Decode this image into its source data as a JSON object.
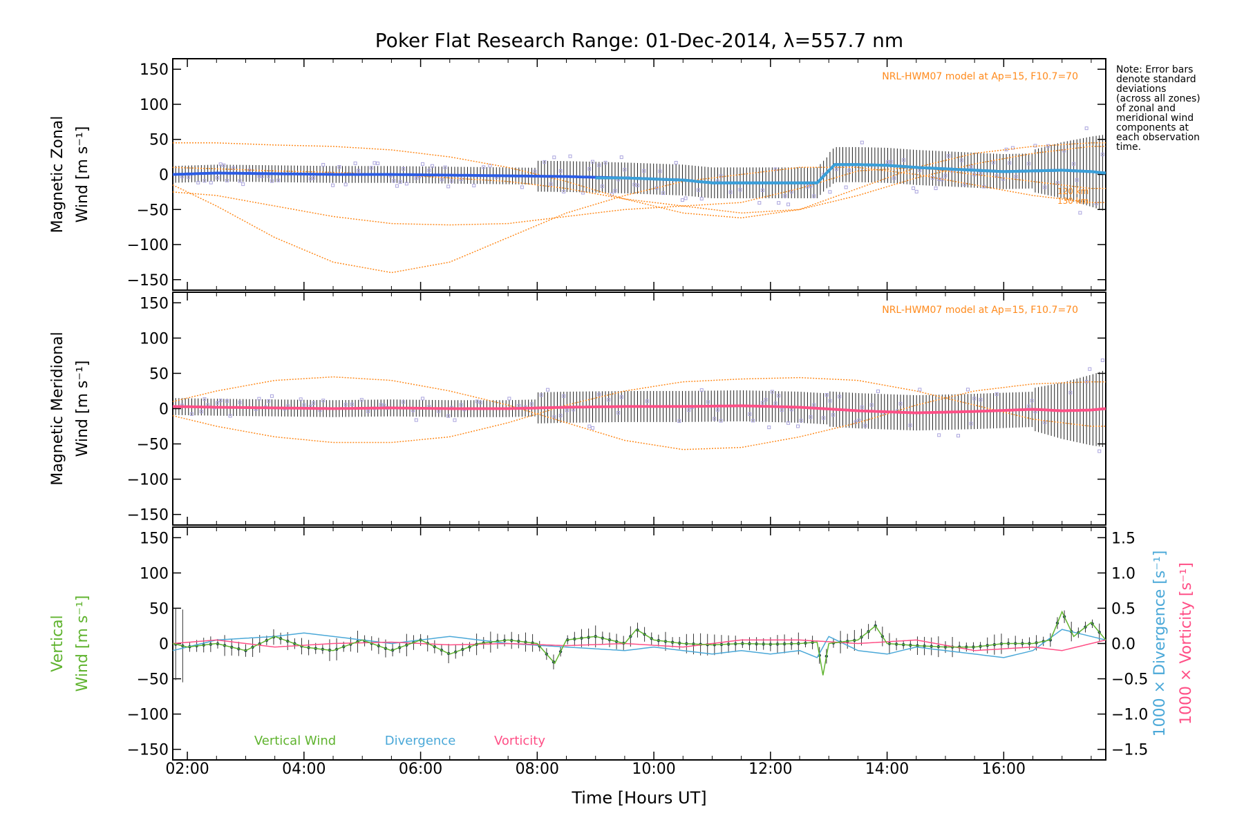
{
  "title": "Poker Flat Research Range: 01-Dec-2014, λ=557.7 nm",
  "note_lines": [
    "Note: Error bars",
    "denote standard",
    "deviations",
    "(across all zones)",
    "of zonal and",
    "meridional wind",
    "components at",
    "each observation",
    "time."
  ],
  "model_label": "NRL-HWM07 model at Ap=15, F10.7=70",
  "model_altitude_labels": [
    "120 km",
    "130 km"
  ],
  "xaxis": {
    "label": "Time [Hours UT]",
    "range": [
      1.75,
      17.75
    ],
    "ticks": [
      2,
      4,
      6,
      8,
      10,
      12,
      14,
      16
    ],
    "tick_labels": [
      "02:00",
      "04:00",
      "06:00",
      "08:00",
      "10:00",
      "12:00",
      "14:00",
      "16:00"
    ]
  },
  "colors": {
    "zonal_mean": "#2a5ce6",
    "zonal_mean_late": "#3aa0d8",
    "meridional_mean": "#ff4f86",
    "samples": "#a9a3dd",
    "model": "#ff8a1c",
    "error_bars": "#1a1a1a",
    "vertical": "#5fb32e",
    "divergence": "#4aa8d8",
    "vorticity": "#ff4f86"
  },
  "chart_data": [
    {
      "type": "line",
      "title": "",
      "ylabel_line1": "Magnetic Zonal",
      "ylabel_line2": "Wind [m s⁻¹]",
      "ylim": [
        -165,
        165
      ],
      "yticks": [
        -150,
        -100,
        -50,
        0,
        50,
        100,
        150
      ],
      "series": [
        {
          "role": "mean",
          "x": [
            1.75,
            2.5,
            3.5,
            4.5,
            5.5,
            6.5,
            7.5,
            8.5,
            9.5,
            10.5,
            11.0,
            12.0,
            12.8,
            13.1,
            13.5,
            14.0,
            14.5,
            15.0,
            15.5,
            16.0,
            16.5,
            17.0,
            17.5,
            17.75
          ],
          "y": [
            0,
            2,
            1,
            0,
            0,
            -1,
            -2,
            -3,
            -5,
            -8,
            -12,
            -12,
            -12,
            14,
            14,
            13,
            10,
            8,
            6,
            4,
            5,
            6,
            4,
            2
          ]
        },
        {
          "role": "model",
          "x": [
            1.75,
            2.5,
            3.5,
            4.5,
            5.5,
            6.5,
            7.5,
            8.5,
            9.5,
            10.5,
            11.5,
            12.5,
            13.5,
            14.5,
            15.5,
            16.5,
            17.5
          ],
          "y": [
            -15,
            -45,
            -90,
            -125,
            -140,
            -125,
            -90,
            -55,
            -30,
            -10,
            0,
            10,
            10,
            0,
            -15,
            -30,
            -40
          ]
        },
        {
          "role": "model",
          "x": [
            1.75,
            2.5,
            3.5,
            4.5,
            5.5,
            6.5,
            7.5,
            8.5,
            9.5,
            10.5,
            11.5,
            12.5,
            13.5,
            14.5,
            15.5,
            16.5,
            17.5
          ],
          "y": [
            -25,
            -30,
            -45,
            -60,
            -70,
            -72,
            -70,
            -60,
            -50,
            -45,
            -55,
            -50,
            -20,
            10,
            30,
            40,
            45
          ]
        },
        {
          "role": "model",
          "x": [
            1.75,
            2.5,
            3.5,
            4.5,
            5.5,
            6.5,
            7.5,
            8.5,
            9.5,
            10.5,
            11.5,
            12.5,
            13.5,
            14.5,
            15.5,
            16.5,
            17.5
          ],
          "y": [
            45,
            45,
            42,
            40,
            35,
            25,
            10,
            -10,
            -35,
            -55,
            -62,
            -50,
            -30,
            -5,
            15,
            30,
            40
          ]
        },
        {
          "role": "model",
          "x": [
            1.75,
            2.5,
            3.5,
            4.5,
            5.5,
            6.5,
            7.5,
            8.5,
            9.5,
            10.5,
            11.5,
            12.5,
            13.5,
            14.5,
            15.5,
            16.5,
            17.5
          ],
          "y": [
            10,
            8,
            5,
            3,
            0,
            -5,
            -10,
            -20,
            -35,
            -45,
            -40,
            -20,
            5,
            10,
            0,
            -10,
            -20
          ]
        }
      ]
    },
    {
      "type": "line",
      "title": "",
      "ylabel_line1": "Magnetic Meridional",
      "ylabel_line2": "Wind [m s⁻¹]",
      "ylim": [
        -165,
        165
      ],
      "yticks": [
        -150,
        -100,
        -50,
        0,
        50,
        100,
        150
      ],
      "series": [
        {
          "role": "mean",
          "x": [
            1.75,
            2.5,
            3.5,
            4.5,
            5.5,
            6.5,
            7.5,
            8.5,
            9.5,
            10.5,
            11.5,
            12.5,
            13.5,
            14.5,
            15.5,
            16.5,
            17.0,
            17.5,
            17.75
          ],
          "y": [
            3,
            2,
            1,
            0,
            1,
            0,
            0,
            2,
            3,
            3,
            4,
            2,
            -3,
            -6,
            -4,
            -1,
            -3,
            -2,
            0
          ]
        },
        {
          "role": "model",
          "x": [
            1.75,
            2.5,
            3.5,
            4.5,
            5.5,
            6.5,
            7.5,
            8.5,
            9.5,
            10.5,
            11.5,
            12.5,
            13.5,
            14.5,
            15.5,
            16.5,
            17.5
          ],
          "y": [
            10,
            25,
            40,
            45,
            40,
            25,
            5,
            -20,
            -45,
            -58,
            -55,
            -40,
            -20,
            5,
            25,
            35,
            38
          ]
        },
        {
          "role": "model",
          "x": [
            1.75,
            2.5,
            3.5,
            4.5,
            5.5,
            6.5,
            7.5,
            8.5,
            9.5,
            10.5,
            11.5,
            12.5,
            13.5,
            14.5,
            15.5,
            16.5,
            17.5
          ],
          "y": [
            -10,
            -25,
            -40,
            -48,
            -48,
            -40,
            -20,
            5,
            25,
            38,
            42,
            44,
            40,
            25,
            5,
            -15,
            -25
          ]
        }
      ]
    },
    {
      "type": "line",
      "title": "",
      "ylabel_line1": "Vertical",
      "ylabel_line2": "Wind [m s⁻¹]",
      "ylim": [
        -165,
        165
      ],
      "yticks": [
        -150,
        -100,
        -50,
        0,
        50,
        100,
        150
      ],
      "y2label_divergence": "1000 × Divergence [s⁻¹]",
      "y2label_vorticity": "1000 × Vorticity [s⁻¹]",
      "y2lim": [
        -1.65,
        1.65
      ],
      "y2ticks": [
        -1.5,
        -1.0,
        -0.5,
        0.0,
        0.5,
        1.0,
        1.5
      ],
      "y2tick_labels": [
        "−1.5",
        "−1.0",
        "−0.5",
        "0.0",
        "0.5",
        "1.0",
        "1.5"
      ],
      "legend": [
        "Vertical Wind",
        "Divergence",
        "Vorticity"
      ],
      "series": [
        {
          "name": "Vertical Wind",
          "x": [
            1.75,
            2.0,
            2.5,
            3.0,
            3.5,
            4.0,
            4.5,
            5.0,
            5.5,
            6.0,
            6.5,
            7.0,
            7.5,
            8.0,
            8.3,
            8.5,
            9.0,
            9.5,
            9.7,
            10.0,
            10.5,
            11.0,
            11.5,
            12.0,
            12.5,
            12.8,
            12.9,
            13.0,
            13.5,
            13.8,
            14.0,
            14.5,
            15.0,
            15.5,
            16.0,
            16.5,
            16.8,
            17.0,
            17.2,
            17.5,
            17.75
          ],
          "y": [
            0,
            -5,
            0,
            -10,
            10,
            -5,
            -10,
            5,
            -10,
            5,
            -15,
            0,
            5,
            0,
            -28,
            5,
            10,
            0,
            20,
            5,
            0,
            -2,
            0,
            -1,
            0,
            2,
            -45,
            0,
            5,
            25,
            0,
            -3,
            -5,
            -5,
            0,
            0,
            5,
            45,
            10,
            30,
            5
          ]
        },
        {
          "name": "Divergence",
          "x": [
            1.75,
            2.5,
            3.5,
            4.0,
            4.5,
            5.0,
            5.5,
            6.0,
            6.5,
            7.5,
            8.5,
            9.5,
            10.0,
            10.5,
            11.0,
            11.5,
            12.0,
            12.5,
            12.8,
            13.0,
            13.5,
            14.0,
            14.5,
            15.0,
            15.5,
            16.0,
            16.5,
            17.0,
            17.5,
            17.75
          ],
          "y": [
            -0.1,
            0.05,
            0.1,
            0.15,
            0.1,
            0.05,
            0.0,
            0.05,
            0.1,
            0.0,
            -0.05,
            -0.1,
            -0.05,
            -0.1,
            -0.15,
            -0.1,
            -0.15,
            -0.1,
            -0.2,
            0.1,
            -0.1,
            -0.15,
            -0.05,
            -0.1,
            -0.15,
            -0.2,
            -0.1,
            0.2,
            0.1,
            0.05
          ]
        },
        {
          "name": "Vorticity",
          "x": [
            1.75,
            2.5,
            3.5,
            4.5,
            5.5,
            6.5,
            7.5,
            8.5,
            9.5,
            10.5,
            11.5,
            12.5,
            13.5,
            14.5,
            15.5,
            16.5,
            17.0,
            17.5,
            17.75
          ],
          "y": [
            0.0,
            0.05,
            -0.05,
            0.0,
            0.02,
            -0.02,
            0.0,
            -0.03,
            0.0,
            -0.05,
            0.05,
            0.05,
            0.0,
            0.05,
            -0.1,
            -0.05,
            -0.1,
            0.0,
            0.05
          ]
        }
      ]
    }
  ]
}
